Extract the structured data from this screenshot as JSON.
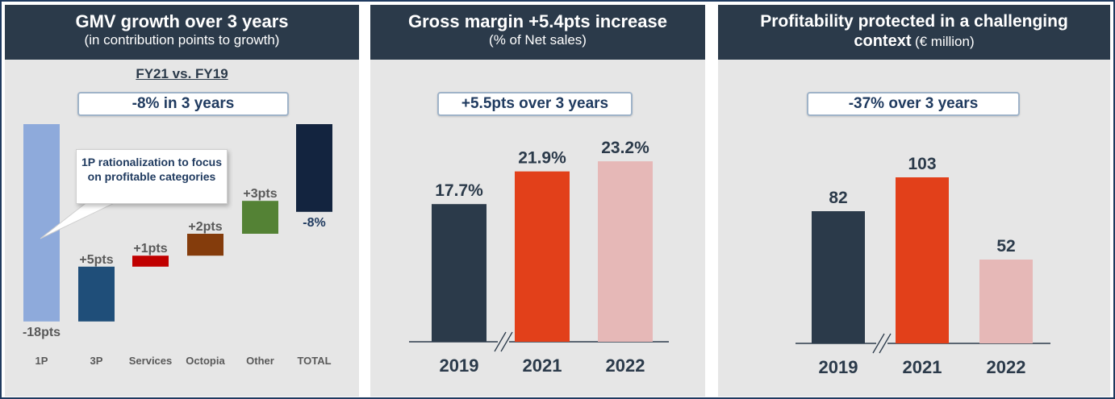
{
  "panels": [
    {
      "title": "GMV growth over 3 years",
      "subtitle": "(in contribution points to growth)",
      "subheading": "FY21 vs. FY19",
      "pill": "-8% in 3 years",
      "callout": "1P rationalization to focus on profitable categories"
    },
    {
      "title": "Gross margin +5.4pts increase",
      "subtitle": "(% of Net sales)",
      "pill": "+5.5pts over 3 years"
    },
    {
      "title": "Profitability protected in a challenging",
      "title_line2": "context",
      "title_unit": "(€ million)",
      "pill": "-37% over 3 years"
    }
  ],
  "chart_data": [
    {
      "type": "bar",
      "subtype": "waterfall",
      "categories": [
        "1P",
        "3P",
        "Services",
        "Octopia",
        "Other",
        "TOTAL"
      ],
      "values": [
        -18,
        5,
        1,
        2,
        3,
        -8
      ],
      "labels": [
        "-18pts",
        "+5pts",
        "+1pts",
        "+2pts",
        "+3pts",
        "-8%"
      ],
      "colors": [
        "#8eaadb",
        "#1f4e79",
        "#c00000",
        "#843c0c",
        "#548235",
        "#13243f"
      ]
    },
    {
      "type": "bar",
      "categories": [
        "2019",
        "2021",
        "2022"
      ],
      "values": [
        17.7,
        21.9,
        23.2
      ],
      "labels": [
        "17.7%",
        "21.9%",
        "23.2%"
      ],
      "colors": [
        "#2b3a4a",
        "#e2401a",
        "#e6b8b7"
      ],
      "axis_break": "between 2019 and 2021"
    },
    {
      "type": "bar",
      "categories": [
        "2019",
        "2021",
        "2022"
      ],
      "values": [
        82,
        103,
        52
      ],
      "labels": [
        "82",
        "103",
        "52"
      ],
      "colors": [
        "#2b3a4a",
        "#e2401a",
        "#e6b8b7"
      ],
      "axis_break": "between 2019 and 2021"
    }
  ]
}
